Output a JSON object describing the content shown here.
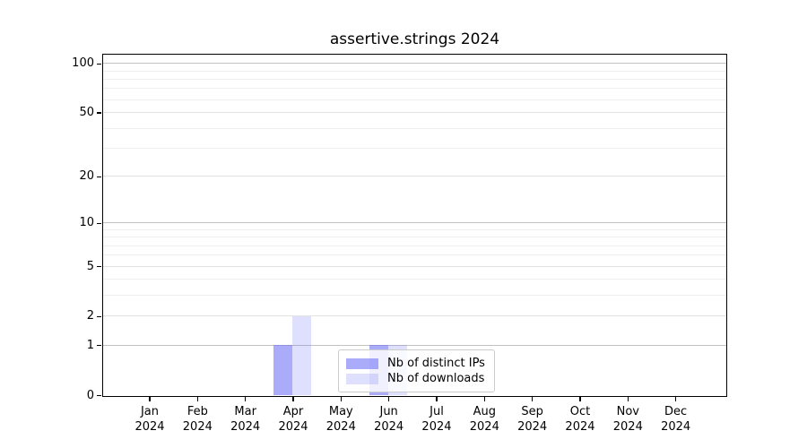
{
  "title": "assertive.strings 2024",
  "colors": {
    "bar_rgb": "108,112,245",
    "bar_ips_alpha": "0.58",
    "bar_downloads_alpha": "0.22",
    "grid_major": "#c2c2c2",
    "grid_labeled": "#e2e2e2",
    "grid_minor": "#efefef",
    "axis_color": "#000000",
    "legend_border": "#cccccc",
    "background": "#ffffff"
  },
  "chart_data": {
    "type": "bar",
    "title": "assertive.strings 2024",
    "categories": [
      "Jan 2024",
      "Feb 2024",
      "Mar 2024",
      "Apr 2024",
      "May 2024",
      "Jun 2024",
      "Jul 2024",
      "Aug 2024",
      "Sep 2024",
      "Oct 2024",
      "Nov 2024",
      "Dec 2024"
    ],
    "series": [
      {
        "name": "Nb of distinct IPs",
        "values": [
          0,
          0,
          0,
          1,
          0,
          1,
          0,
          0,
          0,
          0,
          0,
          0
        ]
      },
      {
        "name": "Nb of downloads",
        "values": [
          0,
          0,
          0,
          2,
          0,
          1,
          0,
          0,
          0,
          0,
          0,
          0
        ]
      }
    ],
    "xlabel": "",
    "ylabel": "",
    "y_scale": "log1p",
    "y_ticks": [
      0,
      1,
      2,
      5,
      10,
      20,
      50,
      100
    ],
    "y_grid_major": [
      1,
      10,
      100
    ],
    "y_grid_labeled": [
      2,
      5,
      20,
      50
    ],
    "y_grid_minor": [
      3,
      4,
      6,
      7,
      8,
      9,
      30,
      40,
      60,
      70,
      80,
      90
    ],
    "ylim": [
      0,
      113
    ],
    "grid": "on",
    "legend_position": "inside lower-center"
  }
}
